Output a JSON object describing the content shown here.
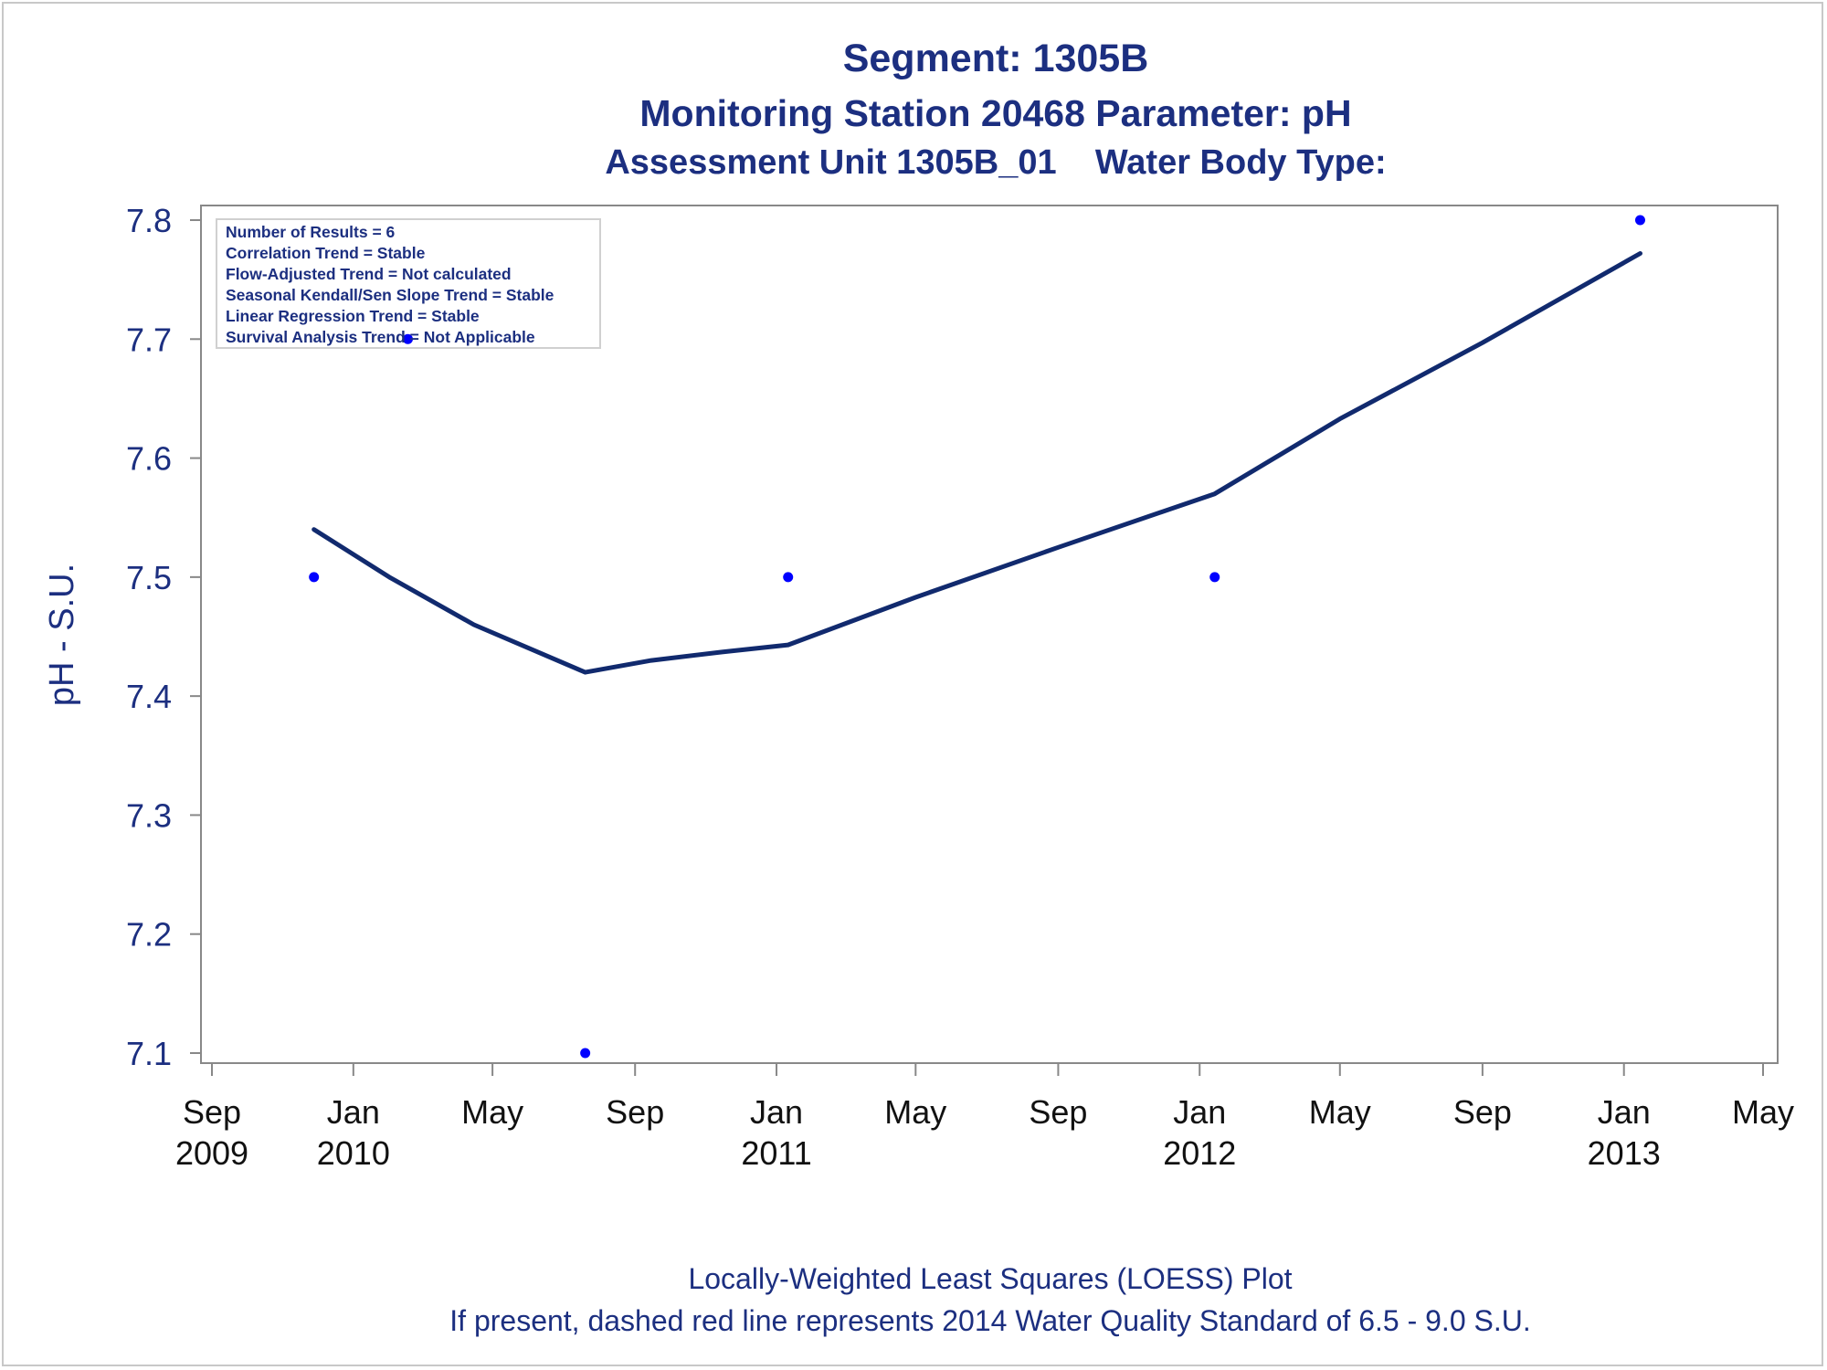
{
  "chart_data": {
    "type": "scatter",
    "title": "Segment: 1305B",
    "subtitle1": "Monitoring Station 20468 Parameter: pH",
    "subtitle2": "Assessment Unit 1305B_01    Water Body Type:",
    "ylabel": "pH - S.U.",
    "xlabel": "",
    "ylim": [
      7.1,
      7.8
    ],
    "yticks": [
      7.1,
      7.2,
      7.3,
      7.4,
      7.5,
      7.6,
      7.7,
      7.8
    ],
    "xlim": [
      "2009-09-01",
      "2013-05-01"
    ],
    "xticks": [
      {
        "date": "2009-09-01",
        "label": "Sep",
        "year": "2009"
      },
      {
        "date": "2010-01-01",
        "label": "Jan",
        "year": "2010"
      },
      {
        "date": "2010-05-01",
        "label": "May",
        "year": ""
      },
      {
        "date": "2010-09-01",
        "label": "Sep",
        "year": ""
      },
      {
        "date": "2011-01-01",
        "label": "Jan",
        "year": "2011"
      },
      {
        "date": "2011-05-01",
        "label": "May",
        "year": ""
      },
      {
        "date": "2011-09-01",
        "label": "Sep",
        "year": ""
      },
      {
        "date": "2012-01-01",
        "label": "Jan",
        "year": "2012"
      },
      {
        "date": "2012-05-01",
        "label": "May",
        "year": ""
      },
      {
        "date": "2012-09-01",
        "label": "Sep",
        "year": ""
      },
      {
        "date": "2013-01-01",
        "label": "Jan",
        "year": "2013"
      },
      {
        "date": "2013-05-01",
        "label": "May",
        "year": ""
      }
    ],
    "points": [
      {
        "x": "2009-11-28",
        "y": 7.5
      },
      {
        "x": "2010-02-17",
        "y": 7.7
      },
      {
        "x": "2010-07-20",
        "y": 7.1
      },
      {
        "x": "2011-01-11",
        "y": 7.5
      },
      {
        "x": "2012-01-14",
        "y": 7.5
      },
      {
        "x": "2013-01-15",
        "y": 7.8
      }
    ],
    "loess": [
      {
        "x": "2009-11-28",
        "y": 7.54
      },
      {
        "x": "2010-02-01",
        "y": 7.5
      },
      {
        "x": "2010-04-15",
        "y": 7.46
      },
      {
        "x": "2010-07-20",
        "y": 7.42
      },
      {
        "x": "2010-09-15",
        "y": 7.43
      },
      {
        "x": "2010-11-15",
        "y": 7.437
      },
      {
        "x": "2011-01-11",
        "y": 7.443
      },
      {
        "x": "2011-05-01",
        "y": 7.483
      },
      {
        "x": "2011-09-01",
        "y": 7.525
      },
      {
        "x": "2012-01-14",
        "y": 7.57
      },
      {
        "x": "2012-05-01",
        "y": 7.633
      },
      {
        "x": "2012-09-01",
        "y": 7.697
      },
      {
        "x": "2013-01-15",
        "y": 7.772
      }
    ],
    "colors": {
      "text": "#1c2f80",
      "line": "#112a6e",
      "points": "#0000ff",
      "axis": "#888888"
    },
    "grid": false,
    "legend_position": "top-left"
  },
  "stats_box": {
    "lines": [
      "Number of Results = 6",
      "Correlation Trend = Stable",
      "Flow-Adjusted Trend = Not calculated",
      "Seasonal Kendall/Sen Slope Trend = Stable",
      "Linear Regression Trend = Stable",
      "Survival Analysis Trend = Not Applicable"
    ]
  },
  "footnotes": [
    "Locally-Weighted Least Squares (LOESS) Plot",
    "If present, dashed red line represents 2014 Water Quality Standard of 6.5 - 9.0 S.U."
  ]
}
